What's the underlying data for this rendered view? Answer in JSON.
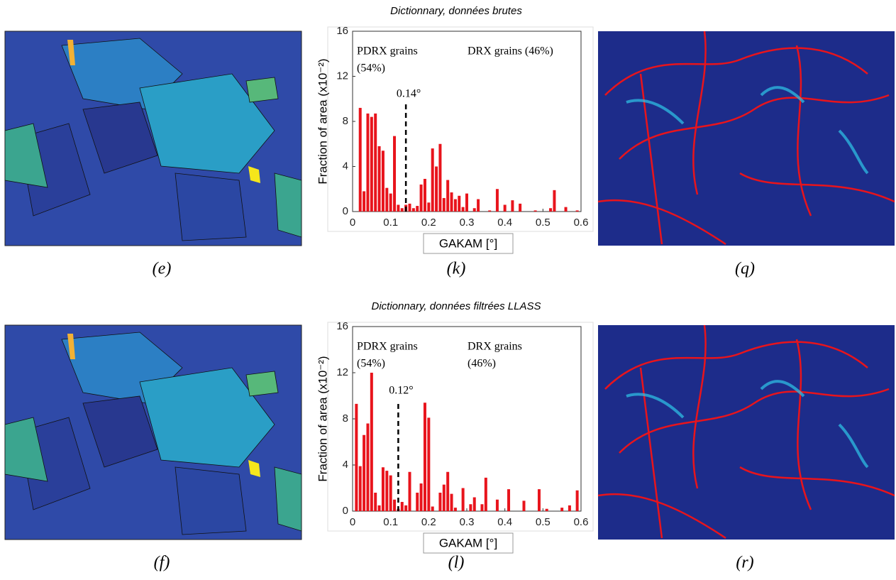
{
  "panel_labels": [
    [
      "(e)",
      "(k)",
      "(q)"
    ],
    [
      "(f)",
      "(l)",
      "(r)"
    ]
  ],
  "chart_data": [
    {
      "type": "bar",
      "title": "Dictionnary, données brutes",
      "color": "#e8141c",
      "xlabel": "GAKAM [°]",
      "ylabel": "Fraction of area (x10⁻²)",
      "x": [
        0.02,
        0.03,
        0.04,
        0.05,
        0.06,
        0.07,
        0.08,
        0.09,
        0.1,
        0.11,
        0.12,
        0.13,
        0.14,
        0.15,
        0.16,
        0.17,
        0.18,
        0.19,
        0.2,
        0.21,
        0.22,
        0.23,
        0.24,
        0.25,
        0.26,
        0.27,
        0.28,
        0.29,
        0.3,
        0.32,
        0.33,
        0.36,
        0.38,
        0.4,
        0.42,
        0.44,
        0.48,
        0.52,
        0.53,
        0.56,
        0.59
      ],
      "values": [
        9.2,
        1.8,
        8.7,
        8.4,
        8.7,
        5.8,
        5.4,
        2.1,
        1.6,
        6.7,
        0.6,
        0.3,
        0.6,
        0.7,
        0.3,
        0.5,
        2.4,
        2.9,
        0.8,
        5.6,
        4.0,
        6.0,
        1.2,
        2.8,
        1.7,
        1.1,
        1.4,
        0.4,
        1.6,
        0.3,
        1.1,
        0.1,
        2.0,
        0.6,
        1.0,
        0.7,
        0.1,
        0.3,
        1.9,
        0.4,
        0.1
      ],
      "xlim": [
        0,
        0.6
      ],
      "ylim": [
        0,
        16
      ],
      "xticks": [
        0,
        0.1,
        0.2,
        0.3,
        0.4,
        0.5,
        0.6
      ],
      "yticks": [
        0,
        4,
        8,
        12,
        16
      ],
      "threshold": {
        "value": 0.14,
        "label": "0.14°"
      },
      "annotations": [
        {
          "lines": [
            "PDRX grains",
            "(54%)"
          ]
        },
        {
          "lines": [
            "DRX grains (46%)"
          ]
        }
      ]
    },
    {
      "type": "bar",
      "title": "Dictionnary, données filtrées LLASS",
      "color": "#e8141c",
      "xlabel": "GAKAM [°]",
      "ylabel": "Fraction of area (x10⁻²)",
      "x": [
        0.01,
        0.02,
        0.03,
        0.04,
        0.05,
        0.06,
        0.07,
        0.08,
        0.09,
        0.1,
        0.11,
        0.12,
        0.13,
        0.14,
        0.15,
        0.17,
        0.18,
        0.19,
        0.2,
        0.21,
        0.23,
        0.24,
        0.25,
        0.26,
        0.27,
        0.29,
        0.31,
        0.32,
        0.34,
        0.35,
        0.38,
        0.41,
        0.45,
        0.49,
        0.51,
        0.55,
        0.57,
        0.59
      ],
      "values": [
        9.3,
        3.9,
        6.6,
        7.6,
        12,
        1.6,
        0.5,
        3.8,
        3.5,
        3.1,
        1.0,
        0.2,
        0.8,
        0.5,
        3.4,
        1.6,
        2.4,
        9.4,
        8.1,
        0.4,
        1.6,
        2.3,
        3.4,
        1.5,
        0.3,
        2.0,
        0.6,
        1.2,
        0.6,
        2.9,
        1.0,
        1.9,
        0.9,
        1.9,
        0.2,
        0.3,
        0.5,
        1.8
      ],
      "xlim": [
        0,
        0.6
      ],
      "ylim": [
        0,
        16
      ],
      "xticks": [
        0,
        0.1,
        0.2,
        0.3,
        0.4,
        0.5,
        0.6
      ],
      "yticks": [
        0,
        4,
        8,
        12,
        16
      ],
      "threshold": {
        "value": 0.12,
        "label": "0.12°"
      },
      "annotations": [
        {
          "lines": [
            "PDRX grains",
            "(54%)"
          ]
        },
        {
          "lines": [
            "DRX grains",
            "(46%)"
          ]
        }
      ]
    }
  ]
}
